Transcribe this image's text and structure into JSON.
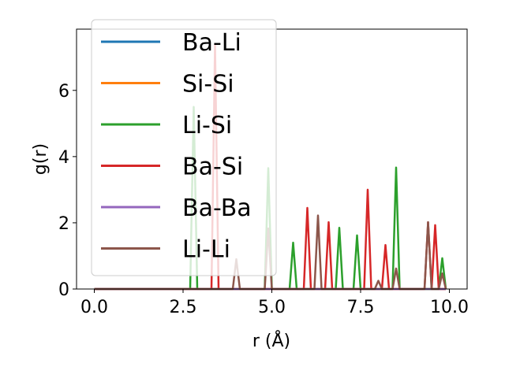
{
  "chart_data": {
    "type": "line",
    "xlabel": "r (Å)",
    "ylabel": "g(r)",
    "xlim": [
      -0.5,
      10.5
    ],
    "ylim": [
      0,
      7.85
    ],
    "xticks": [
      0.0,
      2.5,
      5.0,
      7.5,
      10.0
    ],
    "xtick_labels": [
      "0.0",
      "2.5",
      "5.0",
      "7.5",
      "10.0"
    ],
    "yticks": [
      0,
      2,
      4,
      6
    ],
    "ytick_labels": [
      "0",
      "2",
      "4",
      "6"
    ],
    "grid": false,
    "legend_position": "top-left",
    "x_range": [
      0,
      9.9
    ],
    "series": [
      {
        "name": "Ba-Li",
        "color": "#1f77b4",
        "peaks": []
      },
      {
        "name": "Si-Si",
        "color": "#ff7f0e",
        "peaks": []
      },
      {
        "name": "Li-Si",
        "color": "#2ca02c",
        "peaks": [
          [
            2.8,
            5.5
          ],
          [
            4.9,
            3.65
          ],
          [
            5.6,
            1.4
          ],
          [
            6.9,
            1.85
          ],
          [
            7.4,
            1.62
          ],
          [
            8.5,
            3.67
          ],
          [
            9.8,
            0.93
          ]
        ]
      },
      {
        "name": "Ba-Si",
        "color": "#d62728",
        "peaks": [
          [
            3.4,
            7.4
          ],
          [
            6.0,
            2.45
          ],
          [
            6.6,
            2.02
          ],
          [
            7.7,
            3.0
          ],
          [
            8.2,
            1.33
          ],
          [
            9.4,
            2.02
          ],
          [
            9.6,
            1.93
          ]
        ]
      },
      {
        "name": "Ba-Ba",
        "color": "#9467bd",
        "peaks": []
      },
      {
        "name": "Li-Li",
        "color": "#8c564b",
        "peaks": [
          [
            4.0,
            0.9
          ],
          [
            4.9,
            1.83
          ],
          [
            6.3,
            2.22
          ],
          [
            8.0,
            0.25
          ],
          [
            8.5,
            0.62
          ],
          [
            9.4,
            2.02
          ],
          [
            9.8,
            0.47
          ]
        ]
      }
    ]
  }
}
